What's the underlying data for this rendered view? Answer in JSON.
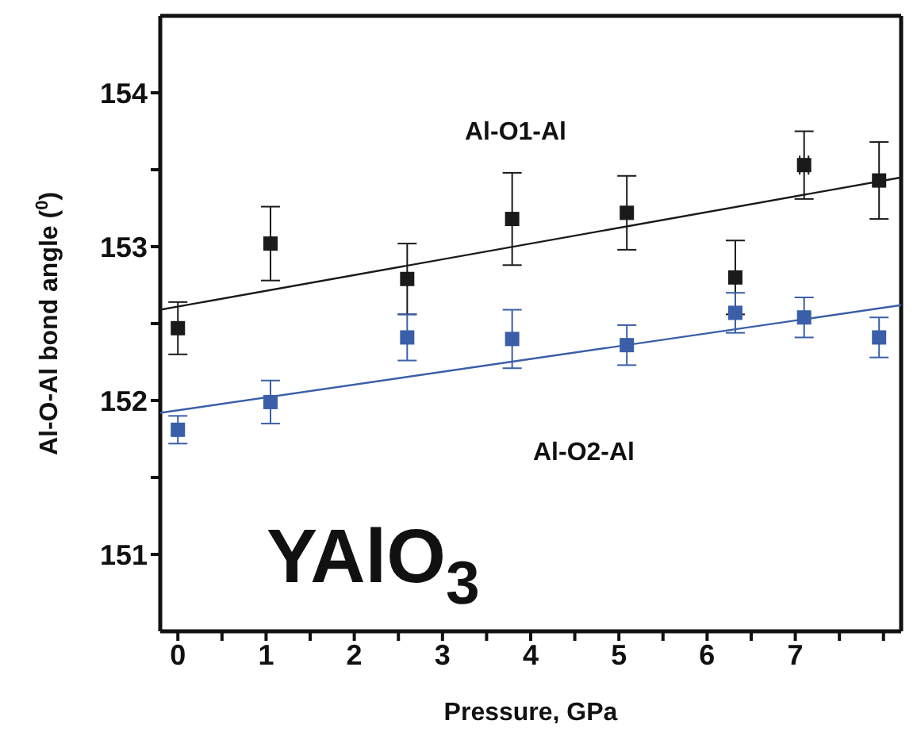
{
  "chart_data": {
    "type": "scatter",
    "xlabel": "Pressure, GPa",
    "ylabel": "Al-O-Al bond angle ($^{0}$)",
    "annotations": [
      "Al-O1-Al",
      "Al-O2-Al",
      "YAlO$_{3}$"
    ],
    "xlim": [
      -0.2,
      8.2
    ],
    "xticks": [
      0,
      {
        "value": 0.5,
        "label": null
      },
      1,
      {
        "value": 1.5,
        "label": null
      },
      2,
      {
        "value": 2.5,
        "label": null
      },
      3,
      {
        "value": 3.5,
        "label": null
      },
      4,
      {
        "value": 4.5,
        "label": null
      },
      5,
      {
        "value": 5.5,
        "label": null
      },
      6,
      {
        "value": 6.5,
        "label": null
      },
      7,
      {
        "value": 7.5,
        "label": null
      },
      {
        "value": 8,
        "label": null
      }
    ],
    "ylim": [
      150.5,
      154.5
    ],
    "yticks": [
      151,
      {
        "value": 151.5,
        "label": null
      },
      152,
      {
        "value": 152.5,
        "label": null
      },
      153,
      {
        "value": 153.5,
        "label": null
      },
      154
    ],
    "marker": "square",
    "grid": false,
    "legend": false,
    "series": [
      {
        "color": "#1a1a1a",
        "x": [
          0,
          1.05,
          2.6,
          3.79,
          5.09,
          6.32,
          7.1,
          7.95
        ],
        "values": [
          152.47,
          153.02,
          152.79,
          153.18,
          153.22,
          152.8,
          153.53,
          153.43
        ],
        "errors": [
          0.17,
          0.24,
          0.23,
          0.3,
          0.24,
          0.24,
          0.22,
          0.25
        ],
        "xerrors": [
          null,
          null,
          null,
          null,
          null,
          null,
          0.05,
          null
        ]
      },
      {
        "color": "#3a5ea8",
        "x": [
          0,
          1.05,
          2.6,
          3.79,
          5.09,
          6.32,
          7.1,
          7.95
        ],
        "values": [
          151.81,
          151.99,
          152.41,
          152.4,
          152.36,
          152.57,
          152.54,
          152.41
        ],
        "errors": [
          0.09,
          0.14,
          0.15,
          0.19,
          0.13,
          0.13,
          0.13,
          0.13
        ]
      },
      {
        "type": "line",
        "marker": "none",
        "color": "#1a1a1a",
        "x": [
          -0.2,
          8.2
        ],
        "values": [
          152.59,
          153.45
        ]
      },
      {
        "type": "line",
        "marker": "none",
        "color": "#3a5ea8",
        "x": [
          -0.2,
          8.2
        ],
        "values": [
          151.92,
          152.62
        ]
      }
    ]
  }
}
